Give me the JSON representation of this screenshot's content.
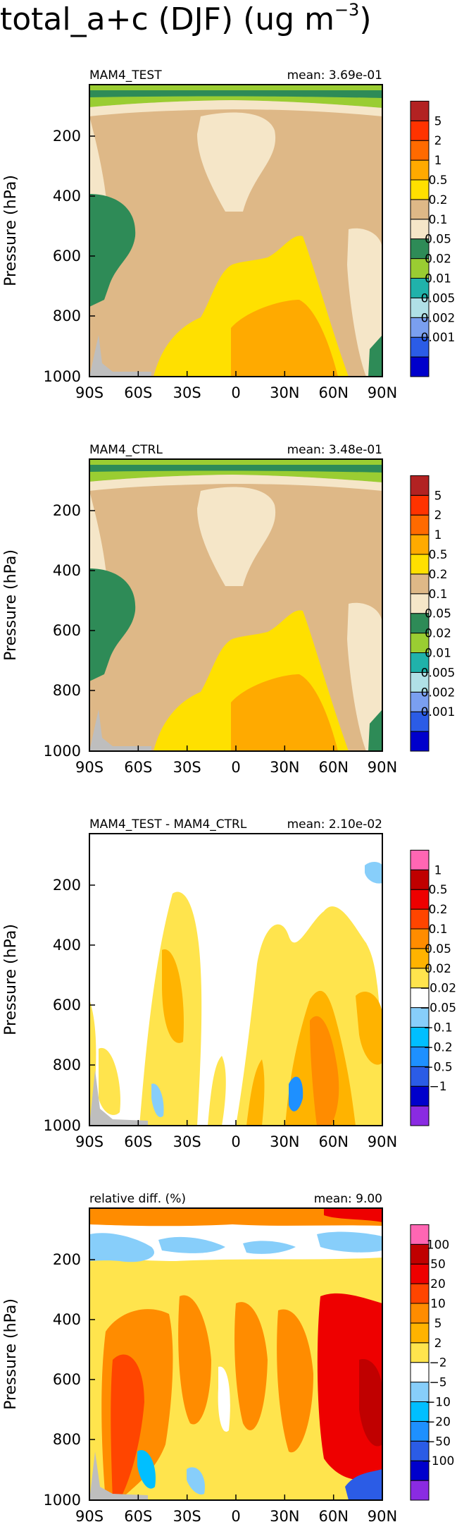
{
  "figure": {
    "title_main": "total_a+c (DJF) (ug m",
    "title_sup": "−3",
    "title_close": ")"
  },
  "colors": {
    "abs": [
      "#0000cc",
      "#2b5ce6",
      "#7a9ff0",
      "#b0e0e6",
      "#20b2aa",
      "#9acd32",
      "#2e8b57",
      "#f5e6c8",
      "#deb887",
      "#ffe000",
      "#ffaa00",
      "#ff6a00",
      "#ff3300",
      "#b22222"
    ],
    "diff": [
      "#8a2be2",
      "#0000cc",
      "#2b5ce6",
      "#1e90ff",
      "#00bfff",
      "#87cefa",
      "#ffffff",
      "#ffe44d",
      "#ffb300",
      "#ff8c00",
      "#ff4500",
      "#ee0000",
      "#c00000",
      "#ff66b3"
    ],
    "land_mask": "#bebebe"
  },
  "chart_data": [
    {
      "type": "heatmap",
      "title": "MAM4_TEST",
      "mean_label": "mean: 3.69e-01",
      "xlabel": "",
      "ylabel": "Pressure (hPa)",
      "x_ticks": [
        "90S",
        "60S",
        "30S",
        "0",
        "30N",
        "60N",
        "90N"
      ],
      "y_ticks": [
        "200",
        "400",
        "600",
        "800",
        "1000"
      ],
      "xlim": [
        -90,
        90
      ],
      "ylim": [
        1000,
        30
      ],
      "colorbar_labels": [
        "5",
        "2",
        "1",
        "0.5",
        "0.2",
        "0.1",
        "0.05",
        "0.02",
        "0.01",
        "0.005",
        "0.002",
        "0.001"
      ]
    },
    {
      "type": "heatmap",
      "title": "MAM4_CTRL",
      "mean_label": "mean: 3.48e-01",
      "xlabel": "",
      "ylabel": "Pressure (hPa)",
      "x_ticks": [
        "90S",
        "60S",
        "30S",
        "0",
        "30N",
        "60N",
        "90N"
      ],
      "y_ticks": [
        "200",
        "400",
        "600",
        "800",
        "1000"
      ],
      "xlim": [
        -90,
        90
      ],
      "ylim": [
        1000,
        30
      ],
      "colorbar_labels": [
        "5",
        "2",
        "1",
        "0.5",
        "0.2",
        "0.1",
        "0.05",
        "0.02",
        "0.01",
        "0.005",
        "0.002",
        "0.001"
      ]
    },
    {
      "type": "heatmap",
      "title": "MAM4_TEST - MAM4_CTRL",
      "mean_label": "mean: 2.10e-02",
      "xlabel": "",
      "ylabel": "Pressure (hPa)",
      "x_ticks": [
        "90S",
        "60S",
        "30S",
        "0",
        "30N",
        "60N",
        "90N"
      ],
      "y_ticks": [
        "200",
        "400",
        "600",
        "800",
        "1000"
      ],
      "xlim": [
        -90,
        90
      ],
      "ylim": [
        1000,
        30
      ],
      "colorbar_labels": [
        "1",
        "0.5",
        "0.2",
        "0.1",
        "0.05",
        "0.02",
        "−0.02",
        "−0.05",
        "−0.1",
        "−0.2",
        "−0.5",
        "−1"
      ]
    },
    {
      "type": "heatmap",
      "title": "relative diff. (%)",
      "mean_label": "mean:  9.00",
      "xlabel": "",
      "ylabel": "Pressure (hPa)",
      "x_ticks": [
        "90S",
        "60S",
        "30S",
        "0",
        "30N",
        "60N",
        "90N"
      ],
      "y_ticks": [
        "200",
        "400",
        "600",
        "800",
        "1000"
      ],
      "xlim": [
        -90,
        90
      ],
      "ylim": [
        1000,
        30
      ],
      "colorbar_labels": [
        "100",
        "50",
        "20",
        "10",
        "5",
        "2",
        "−2",
        "−5",
        "−10",
        "−20",
        "−50",
        "−100"
      ]
    }
  ]
}
